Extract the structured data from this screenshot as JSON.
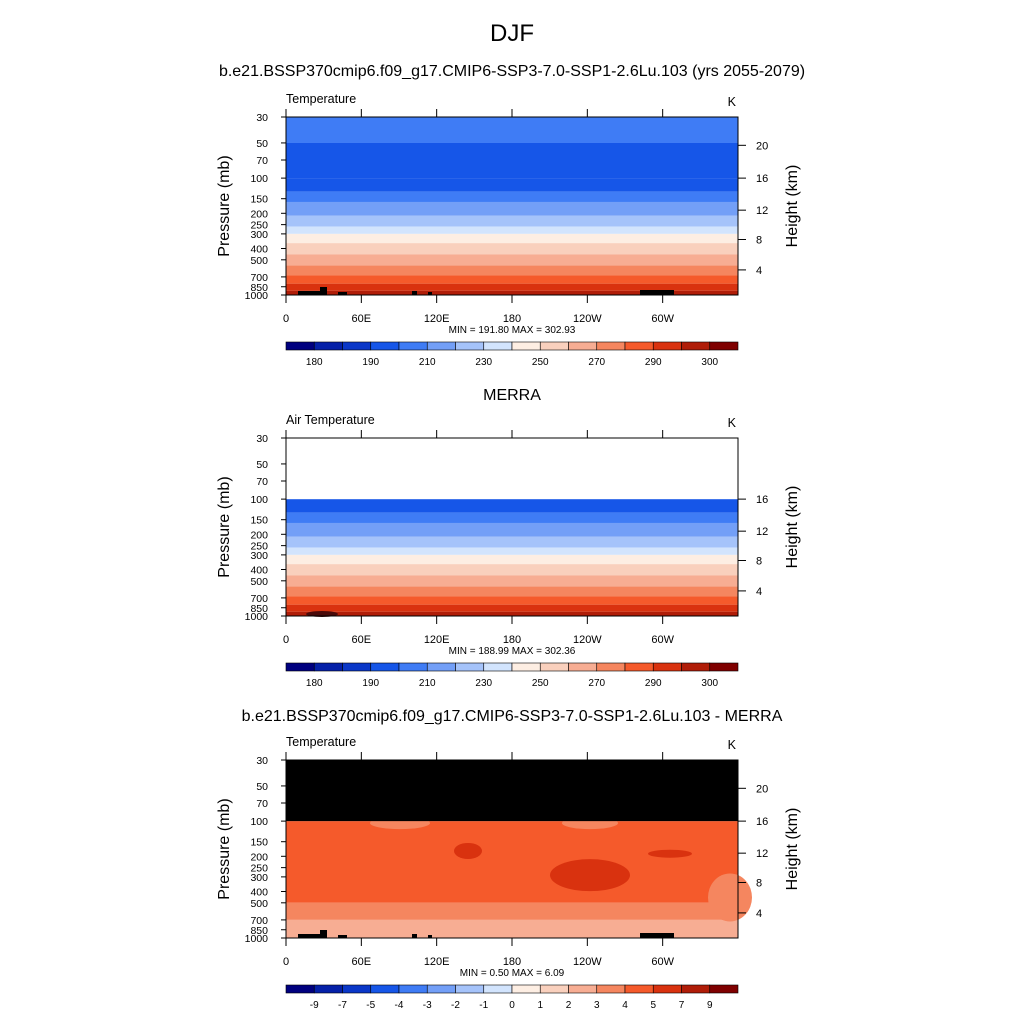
{
  "figure": {
    "title": "DJF"
  },
  "colors": {
    "temperature_levels": [
      "#00007f",
      "#0520a8",
      "#0a37c8",
      "#1656e8",
      "#3f7cf5",
      "#739ff7",
      "#a5c3fa",
      "#d2e4fd",
      "#fdeee3",
      "#f9d0bd",
      "#f7ad93",
      "#f5865f",
      "#f55a2b",
      "#d9320f",
      "#b01d08",
      "#7f0000"
    ],
    "missing": "#000000"
  },
  "chart_data": [
    {
      "type": "heatmap",
      "title": "b.e21.BSSP370cmip6.f09_g17.CMIP6-SSP3-7.0-SSP1-2.6Lu.103 (yrs 2055-2079)",
      "left_label": "Temperature",
      "units": "K",
      "xlabel": "",
      "ylabel": "Pressure (mb)",
      "y2label": "Height (km)",
      "x_ticks": [
        "0",
        "60E",
        "120E",
        "180",
        "120W",
        "60W"
      ],
      "y_ticks": [
        "30",
        "50",
        "70",
        "100",
        "150",
        "200",
        "250",
        "300",
        "400",
        "500",
        "700",
        "850",
        "1000"
      ],
      "height_ticks": [
        "20",
        "16",
        "12",
        "8",
        "4"
      ],
      "stats": "MIN = 191.80  MAX = 302.93",
      "colorbar_labels": [
        "180",
        "190",
        "210",
        "230",
        "250",
        "270",
        "290",
        "300"
      ],
      "profile": [
        {
          "p": 30,
          "band": 4
        },
        {
          "p": 50,
          "band": 3
        },
        {
          "p": 100,
          "band": 3
        },
        {
          "p": 130,
          "band": 4
        },
        {
          "p": 160,
          "band": 5
        },
        {
          "p": 210,
          "band": 6
        },
        {
          "p": 260,
          "band": 7
        },
        {
          "p": 300,
          "band": 8
        },
        {
          "p": 360,
          "band": 9
        },
        {
          "p": 450,
          "band": 10
        },
        {
          "p": 560,
          "band": 11
        },
        {
          "p": 680,
          "band": 12
        },
        {
          "p": 800,
          "band": 13
        },
        {
          "p": 920,
          "band": 14
        }
      ],
      "masked_top_mb": null,
      "topography": true
    },
    {
      "type": "heatmap",
      "title": "MERRA",
      "left_label": "Air Temperature",
      "units": "K",
      "xlabel": "",
      "ylabel": "Pressure (mb)",
      "y2label": "Height (km)",
      "x_ticks": [
        "0",
        "60E",
        "120E",
        "180",
        "120W",
        "60W"
      ],
      "y_ticks": [
        "30",
        "50",
        "70",
        "100",
        "150",
        "200",
        "250",
        "300",
        "400",
        "500",
        "700",
        "850",
        "1000"
      ],
      "height_ticks": [
        "16",
        "12",
        "8",
        "4"
      ],
      "stats": "MIN = 188.99  MAX = 302.36",
      "colorbar_labels": [
        "180",
        "190",
        "210",
        "230",
        "250",
        "270",
        "290",
        "300"
      ],
      "profile": [
        {
          "p": 100,
          "band": 3
        },
        {
          "p": 130,
          "band": 4
        },
        {
          "p": 160,
          "band": 5
        },
        {
          "p": 210,
          "band": 6
        },
        {
          "p": 260,
          "band": 7
        },
        {
          "p": 300,
          "band": 8
        },
        {
          "p": 360,
          "band": 9
        },
        {
          "p": 450,
          "band": 10
        },
        {
          "p": 560,
          "band": 11
        },
        {
          "p": 680,
          "band": 12
        },
        {
          "p": 800,
          "band": 13
        },
        {
          "p": 920,
          "band": 14
        }
      ],
      "blank_top_mb": 100,
      "topography": false
    },
    {
      "type": "heatmap",
      "title": "b.e21.BSSP370cmip6.f09_g17.CMIP6-SSP3-7.0-SSP1-2.6Lu.103 - MERRA",
      "left_label": "Temperature",
      "units": "K",
      "xlabel": "",
      "ylabel": "Pressure (mb)",
      "y2label": "Height (km)",
      "x_ticks": [
        "0",
        "60E",
        "120E",
        "180",
        "120W",
        "60W"
      ],
      "y_ticks": [
        "30",
        "50",
        "70",
        "100",
        "150",
        "200",
        "250",
        "300",
        "400",
        "500",
        "700",
        "850",
        "1000"
      ],
      "height_ticks": [
        "20",
        "16",
        "12",
        "8",
        "4"
      ],
      "stats": "MIN =   0.50  MAX =   6.09",
      "colorbar_labels": [
        "-9",
        "-7",
        "-5",
        "-4",
        "-3",
        "-2",
        "-1",
        "0",
        "1",
        "2",
        "3",
        "4",
        "5",
        "7",
        "9"
      ],
      "profile": [
        {
          "p": 100,
          "band": 12
        },
        {
          "p": 500,
          "band": 11
        },
        {
          "p": 700,
          "band": 10
        }
      ],
      "masked_top_mb": 100,
      "topography": true
    }
  ]
}
